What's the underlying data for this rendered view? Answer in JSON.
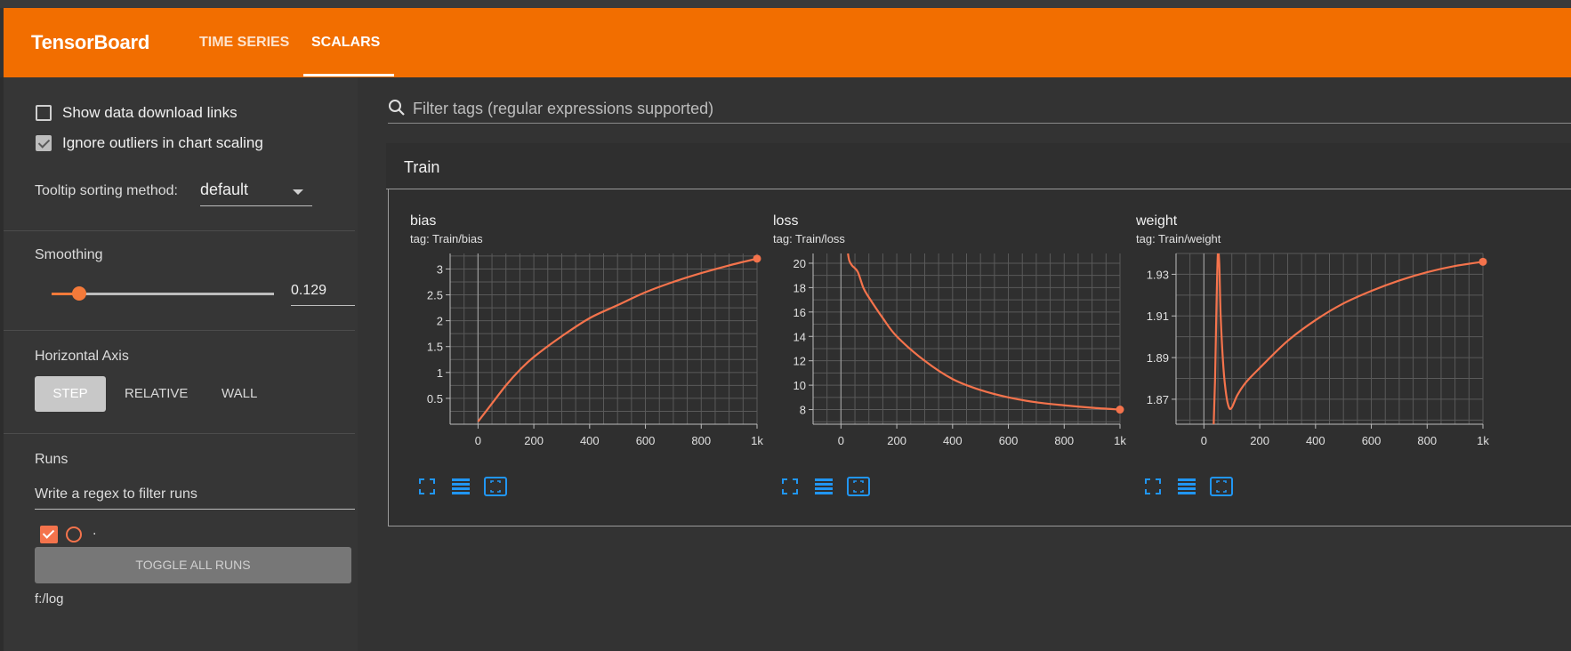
{
  "header": {
    "brand": "TensorBoard",
    "tabs": [
      {
        "label": "TIME SERIES",
        "active": false
      },
      {
        "label": "SCALARS",
        "active": true
      }
    ],
    "accent_color": "#f26e00"
  },
  "sidebar": {
    "show_download_links": {
      "label": "Show data download links",
      "checked": false
    },
    "ignore_outliers": {
      "label": "Ignore outliers in chart scaling",
      "checked": true
    },
    "tooltip_sorting": {
      "label": "Tooltip sorting method:",
      "value": "default"
    },
    "smoothing": {
      "label": "Smoothing",
      "value": "0.129",
      "level": 0.129
    },
    "horizontal_axis": {
      "label": "Horizontal Axis",
      "options": [
        "STEP",
        "RELATIVE",
        "WALL"
      ],
      "selected": "STEP"
    },
    "runs": {
      "label": "Runs",
      "filter_placeholder": "Write a regex to filter runs",
      "items": [
        {
          "name": ".",
          "checked": true,
          "color": "#f4734c"
        }
      ],
      "toggle_label": "TOGGLE ALL RUNS",
      "logdir": "f:/log"
    }
  },
  "main": {
    "search_placeholder": "Filter tags (regular expressions supported)",
    "group_title": "Train",
    "card_controls": [
      "fullscreen-icon",
      "data-table-icon",
      "fit-domain-icon"
    ]
  },
  "chart_data": [
    {
      "type": "line",
      "title": "bias",
      "subtitle": "tag: Train/bias",
      "xlim": [
        -100,
        1000
      ],
      "ylim": [
        0.0,
        3.3
      ],
      "xticks": [
        "0",
        "200",
        "400",
        "600",
        "800",
        "1k"
      ],
      "xtick_values": [
        0,
        200,
        400,
        600,
        800,
        1000
      ],
      "yticks": [
        "0.5",
        "1",
        "1.5",
        "2",
        "2.5",
        "3"
      ],
      "ytick_values": [
        0.5,
        1,
        1.5,
        2,
        2.5,
        3
      ],
      "grid": true,
      "series": [
        {
          "color": "#f4734c",
          "x": [
            0,
            50,
            100,
            150,
            200,
            300,
            400,
            500,
            600,
            700,
            800,
            900,
            1000
          ],
          "y": [
            0.05,
            0.4,
            0.75,
            1.05,
            1.3,
            1.7,
            2.05,
            2.3,
            2.55,
            2.75,
            2.92,
            3.07,
            3.2
          ]
        }
      ]
    },
    {
      "type": "line",
      "title": "loss",
      "subtitle": "tag: Train/loss",
      "xlim": [
        -100,
        1000
      ],
      "ylim": [
        6.8,
        20.8
      ],
      "xticks": [
        "0",
        "200",
        "400",
        "600",
        "800",
        "1k"
      ],
      "xtick_values": [
        0,
        200,
        400,
        600,
        800,
        1000
      ],
      "yticks": [
        "8",
        "10",
        "12",
        "14",
        "16",
        "18",
        "20"
      ],
      "ytick_values": [
        8,
        10,
        12,
        14,
        16,
        18,
        20
      ],
      "grid": true,
      "series": [
        {
          "color": "#f4734c",
          "x": [
            25,
            30,
            40,
            60,
            80,
            100,
            150,
            200,
            300,
            400,
            500,
            600,
            700,
            800,
            900,
            1000
          ],
          "y": [
            20.8,
            20.2,
            19.8,
            19.3,
            18.0,
            17.2,
            15.5,
            14.0,
            12.0,
            10.5,
            9.6,
            9.0,
            8.6,
            8.35,
            8.15,
            8.0
          ]
        }
      ]
    },
    {
      "type": "line",
      "title": "weight",
      "subtitle": "tag: Train/weight",
      "xlim": [
        -100,
        1000
      ],
      "ylim": [
        1.858,
        1.94
      ],
      "xticks": [
        "0",
        "200",
        "400",
        "600",
        "800",
        "1k"
      ],
      "xtick_values": [
        0,
        200,
        400,
        600,
        800,
        1000
      ],
      "yticks": [
        "1.87",
        "1.89",
        "1.91",
        "1.93"
      ],
      "ytick_values": [
        1.87,
        1.89,
        1.91,
        1.93
      ],
      "grid": true,
      "series": [
        {
          "color": "#f4734c",
          "x": [
            35,
            40,
            45,
            50,
            55,
            60,
            70,
            80,
            90,
            100,
            120,
            150,
            200,
            300,
            400,
            500,
            600,
            700,
            800,
            900,
            1000
          ],
          "y": [
            1.858,
            1.88,
            1.915,
            1.94,
            1.935,
            1.91,
            1.885,
            1.872,
            1.866,
            1.866,
            1.872,
            1.878,
            1.885,
            1.898,
            1.908,
            1.916,
            1.922,
            1.927,
            1.931,
            1.934,
            1.936
          ]
        }
      ]
    }
  ]
}
